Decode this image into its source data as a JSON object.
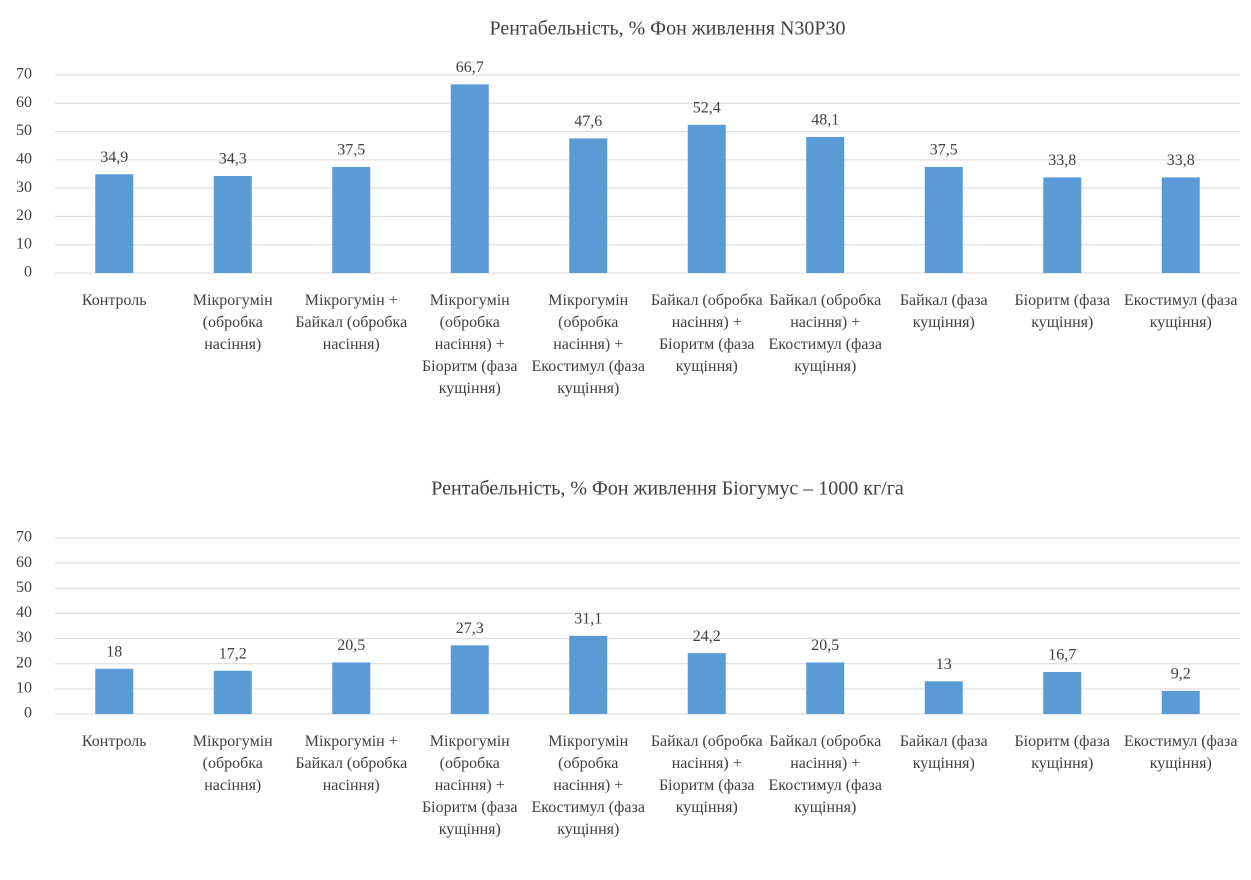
{
  "chart_data": [
    {
      "type": "bar",
      "title": "Рентабельність, % Фон живлення N30P30",
      "categories": [
        "Контроль",
        "Мікрогумін (обробка насіння)",
        "Мікрогумін + Байкал (обробка насіння)",
        "Мікрогумін (обробка насіння) + Біоритм (фаза кущіння)",
        "Мікрогумін (обробка насіння) + Екостимул (фаза кущіння)",
        "Байкал (обробка насіння) + Біоритм (фаза кущіння)",
        "Байкал (обробка насіння) + Екостимул (фаза кущіння)",
        "Байкал (фаза кущіння)",
        "Біоритм (фаза кущіння)",
        "Екостимул (фаза кущіння)"
      ],
      "values": [
        34.9,
        34.3,
        37.5,
        66.7,
        47.6,
        52.4,
        48.1,
        37.5,
        33.8,
        33.8
      ],
      "value_labels": [
        "34,9",
        "34,3",
        "37,5",
        "66,7",
        "47,6",
        "52,4",
        "48,1",
        "37,5",
        "33,8",
        "33,8"
      ],
      "color": "#5b9bd5",
      "ylim": [
        0,
        70
      ],
      "yticks": [
        0,
        10,
        20,
        30,
        40,
        50,
        60,
        70
      ],
      "grid": true
    },
    {
      "type": "bar",
      "title": "Рентабельність, % Фон живлення Біогумус – 1000 кг/га",
      "categories": [
        "Контроль",
        "Мікрогумін (обробка насіння)",
        "Мікрогумін + Байкал (обробка насіння)",
        "Мікрогумін (обробка насіння) + Біоритм (фаза кущіння)",
        "Мікрогумін (обробка насіння) + Екостимул (фаза кущіння)",
        "Байкал (обробка насіння) + Біоритм (фаза кущіння)",
        "Байкал (обробка насіння) + Екостимул (фаза кущіння)",
        "Байкал (фаза кущіння)",
        "Біоритм (фаза кущіння)",
        "Екостимул (фаза кущіння)"
      ],
      "values": [
        18,
        17.2,
        20.5,
        27.3,
        31.1,
        24.2,
        20.5,
        13,
        16.7,
        9.2
      ],
      "value_labels": [
        "18",
        "17,2",
        "20,5",
        "27,3",
        "31,1",
        "24,2",
        "20,5",
        "13",
        "16,7",
        "9,2"
      ],
      "color": "#5b9bd5",
      "ylim": [
        0,
        70
      ],
      "yticks": [
        0,
        10,
        20,
        30,
        40,
        50,
        60,
        70
      ],
      "grid": true
    }
  ]
}
